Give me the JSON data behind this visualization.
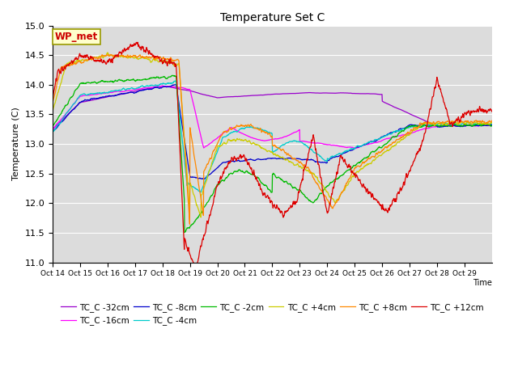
{
  "title": "Temperature Set C",
  "xlabel": "Time",
  "ylabel": "Temperature (C)",
  "ylim": [
    11.0,
    15.0
  ],
  "yticks": [
    11.0,
    11.5,
    12.0,
    12.5,
    13.0,
    13.5,
    14.0,
    14.5,
    15.0
  ],
  "xtick_labels": [
    "Oct 14",
    "Oct 15",
    "Oct 16",
    "Oct 17",
    "Oct 18",
    "Oct 19",
    "Oct 20",
    "Oct 21",
    "Oct 22",
    "Oct 23",
    "Oct 24",
    "Oct 25",
    "Oct 26",
    "Oct 27",
    "Oct 28",
    "Oct 29"
  ],
  "bg_color": "#dcdcdc",
  "series": [
    {
      "label": "TC_C -32cm",
      "color": "#9900cc"
    },
    {
      "label": "TC_C -16cm",
      "color": "#ff00ff"
    },
    {
      "label": "TC_C -8cm",
      "color": "#0000cc"
    },
    {
      "label": "TC_C -4cm",
      "color": "#00cccc"
    },
    {
      "label": "TC_C -2cm",
      "color": "#00bb00"
    },
    {
      "label": "TC_C +4cm",
      "color": "#cccc00"
    },
    {
      "label": "TC_C +8cm",
      "color": "#ff8800"
    },
    {
      "label": "TC_C +12cm",
      "color": "#dd0000"
    }
  ],
  "wp_met_text": "WP_met",
  "wp_met_color": "#cc0000",
  "wp_met_bg": "#ffffcc",
  "wp_met_border": "#999900"
}
